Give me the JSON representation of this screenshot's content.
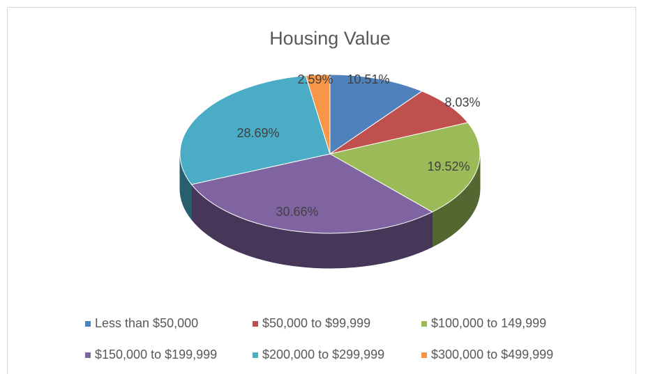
{
  "chart_data": {
    "type": "pie",
    "title": "Housing Value",
    "categories": [
      "Less than $50,000",
      "$50,000 to $99,999",
      "$100,000 to 149,999",
      "$150,000 to $199,999",
      "$200,000 to $299,999",
      "$300,000 to $499,999"
    ],
    "values": [
      10.51,
      8.03,
      19.52,
      30.66,
      28.69,
      2.59
    ],
    "value_labels": [
      "10.51%",
      "8.03%",
      "19.52%",
      "30.66%",
      "28.69%",
      "2.59%"
    ],
    "colors": [
      "#4f81bd",
      "#c0504d",
      "#9bbb59",
      "#8064a2",
      "#4bacc6",
      "#f79646"
    ],
    "legend": "bottom"
  }
}
